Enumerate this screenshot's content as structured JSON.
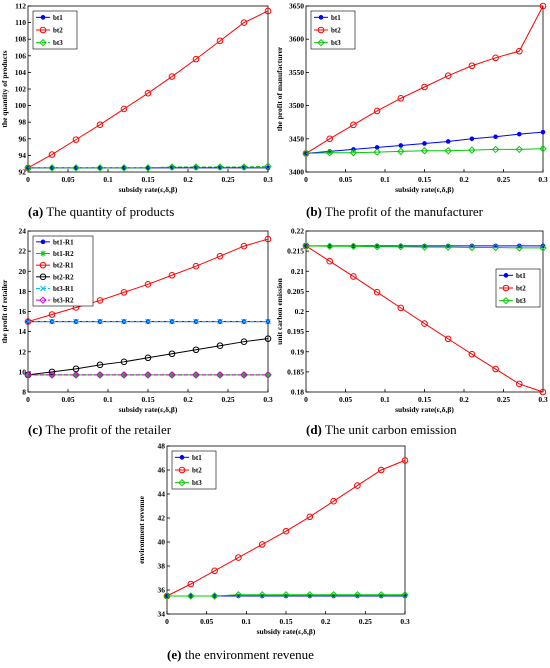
{
  "colors": {
    "bt1": "#0000ff",
    "bt2": "#ff0000",
    "bt3": "#00cc00",
    "bt2R2": "#000000",
    "bt3R1": "#00bfff",
    "bt3R2": "#cc00cc",
    "axis": "#000000"
  },
  "chart_data": [
    {
      "id": "a",
      "type": "line",
      "caption_letter": "(a)",
      "caption_text": "The quantity of products",
      "xlabel": "subsidy rate(ε,δ,β)",
      "ylabel": "the quantity of products",
      "xlim": [
        0,
        0.3
      ],
      "ylim": [
        92,
        112
      ],
      "xticks": [
        "0",
        "0.05",
        "0.1",
        "0.15",
        "0.2",
        "0.25",
        "0.3"
      ],
      "yticks": [
        "92",
        "94",
        "96",
        "98",
        "100",
        "102",
        "104",
        "106",
        "108",
        "110",
        "112"
      ],
      "legend_position": "top-left",
      "x": [
        0,
        0.03,
        0.06,
        0.09,
        0.12,
        0.15,
        0.18,
        0.21,
        0.24,
        0.27,
        0.3
      ],
      "series": [
        {
          "name": "bt1",
          "color": "#0000ff",
          "marker": "dot",
          "dash": "",
          "values": [
            92.5,
            92.5,
            92.5,
            92.5,
            92.5,
            92.5,
            92.5,
            92.5,
            92.5,
            92.5,
            92.5
          ]
        },
        {
          "name": "bt2",
          "color": "#ff0000",
          "marker": "circle",
          "dash": "",
          "values": [
            92.5,
            94.1,
            95.9,
            97.7,
            99.6,
            101.5,
            103.5,
            105.6,
            107.8,
            110.0,
            111.4
          ]
        },
        {
          "name": "bt3",
          "color": "#00cc00",
          "marker": "diamond",
          "dash": "4,2",
          "values": [
            92.5,
            92.5,
            92.5,
            92.5,
            92.5,
            92.5,
            92.6,
            92.6,
            92.6,
            92.6,
            92.7
          ]
        }
      ]
    },
    {
      "id": "b",
      "type": "line",
      "caption_letter": "(b)",
      "caption_text": "The profit of the manufacturer",
      "xlabel": "subsidy rate(ε,δ,β)",
      "ylabel": "the profit of manufacturer",
      "xlim": [
        0,
        0.3
      ],
      "ylim": [
        3400,
        3650
      ],
      "xticks": [
        "0",
        "0.05",
        "0.1",
        "0.15",
        "0.2",
        "0.25",
        "0.3"
      ],
      "yticks": [
        "3400",
        "3450",
        "3500",
        "3550",
        "3600",
        "3650"
      ],
      "legend_position": "top-left",
      "x": [
        0,
        0.03,
        0.06,
        0.09,
        0.12,
        0.15,
        0.18,
        0.21,
        0.24,
        0.27,
        0.3
      ],
      "series": [
        {
          "name": "bt1",
          "color": "#0000ff",
          "marker": "dot",
          "dash": "",
          "values": [
            3428,
            3431,
            3434,
            3437,
            3440,
            3443,
            3446,
            3450,
            3453,
            3457,
            3460
          ]
        },
        {
          "name": "bt2",
          "color": "#ff0000",
          "marker": "circle",
          "dash": "",
          "values": [
            3428,
            3450,
            3471,
            3492,
            3511,
            3528,
            3545,
            3560,
            3572,
            3582,
            3650
          ]
        },
        {
          "name": "bt3",
          "color": "#00cc00",
          "marker": "diamond",
          "dash": "",
          "values": [
            3428,
            3429,
            3429,
            3430,
            3431,
            3432,
            3432,
            3433,
            3434,
            3434,
            3435
          ]
        }
      ]
    },
    {
      "id": "c",
      "type": "line",
      "caption_letter": "(c)",
      "caption_text": "The profit of the retailer",
      "xlabel": "subsidy rate(ε,δ,β)",
      "ylabel": "the profit of retailer",
      "xlim": [
        0,
        0.3
      ],
      "ylim": [
        8,
        24
      ],
      "xticks": [
        "0",
        "0.05",
        "0.1",
        "0.15",
        "0.2",
        "0.25",
        "0.3"
      ],
      "yticks": [
        "8",
        "10",
        "12",
        "14",
        "16",
        "18",
        "20",
        "22",
        "24"
      ],
      "legend_position": "top-left",
      "x": [
        0,
        0.03,
        0.06,
        0.09,
        0.12,
        0.15,
        0.18,
        0.21,
        0.24,
        0.27,
        0.3
      ],
      "series": [
        {
          "name": "bt1-R1",
          "color": "#0000ff",
          "marker": "dot",
          "dash": "",
          "values": [
            15.0,
            15.0,
            15.0,
            15.0,
            15.0,
            15.0,
            15.0,
            15.0,
            15.0,
            15.0,
            15.0
          ]
        },
        {
          "name": "bt1-R2",
          "color": "#00cc00",
          "marker": "star",
          "dash": "",
          "values": [
            9.7,
            9.7,
            9.7,
            9.7,
            9.7,
            9.7,
            9.7,
            9.7,
            9.7,
            9.7,
            9.7
          ]
        },
        {
          "name": "bt2-R1",
          "color": "#ff0000",
          "marker": "circle",
          "dash": "",
          "values": [
            15.0,
            15.7,
            16.4,
            17.1,
            17.9,
            18.7,
            19.6,
            20.5,
            21.5,
            22.5,
            23.2
          ]
        },
        {
          "name": "bt2-R2",
          "color": "#000000",
          "marker": "circle",
          "dash": "",
          "values": [
            9.7,
            10.0,
            10.3,
            10.7,
            11.0,
            11.4,
            11.8,
            12.2,
            12.6,
            13.0,
            13.3
          ]
        },
        {
          "name": "bt3-R1",
          "color": "#00bfff",
          "marker": "x",
          "dash": "4,2",
          "values": [
            15.0,
            15.0,
            15.0,
            15.0,
            15.0,
            15.0,
            15.0,
            15.0,
            15.0,
            15.0,
            15.0
          ]
        },
        {
          "name": "bt3-R2",
          "color": "#cc00cc",
          "marker": "diamond",
          "dash": "4,2",
          "values": [
            9.7,
            9.7,
            9.7,
            9.7,
            9.7,
            9.7,
            9.7,
            9.7,
            9.7,
            9.7,
            9.7
          ]
        }
      ]
    },
    {
      "id": "d",
      "type": "line",
      "caption_letter": "(d)",
      "caption_text": "The unit carbon emission",
      "xlabel": "subsidy rate(ε,δ,β)",
      "ylabel": "unit carbon emission",
      "xlim": [
        0,
        0.3
      ],
      "ylim": [
        0.18,
        0.22
      ],
      "xticks": [
        "0",
        "0.05",
        "0.1",
        "0.15",
        "0.2",
        "0.25",
        "0.3"
      ],
      "yticks": [
        "0.18",
        "0.185",
        "0.19",
        "0.195",
        "0.2",
        "0.205",
        "0.21",
        "0.215",
        "0.22"
      ],
      "legend_position": "right",
      "x": [
        0,
        0.03,
        0.06,
        0.09,
        0.12,
        0.15,
        0.18,
        0.21,
        0.24,
        0.27,
        0.3
      ],
      "series": [
        {
          "name": "bt1",
          "color": "#0000ff",
          "marker": "dot",
          "dash": "",
          "values": [
            0.2163,
            0.2163,
            0.2163,
            0.2163,
            0.2163,
            0.2163,
            0.2163,
            0.2163,
            0.2163,
            0.2163,
            0.2163
          ]
        },
        {
          "name": "bt2",
          "color": "#ff0000",
          "marker": "circle",
          "dash": "",
          "values": [
            0.2163,
            0.2125,
            0.2087,
            0.2048,
            0.2009,
            0.197,
            0.1932,
            0.1894,
            0.1857,
            0.182,
            0.18
          ]
        },
        {
          "name": "bt3",
          "color": "#00cc00",
          "marker": "diamond",
          "dash": "",
          "values": [
            0.2163,
            0.2162,
            0.2162,
            0.2161,
            0.2161,
            0.216,
            0.216,
            0.2159,
            0.2159,
            0.2158,
            0.2158
          ]
        }
      ]
    },
    {
      "id": "e",
      "type": "line",
      "caption_letter": "(e)",
      "caption_text": "the environment revenue",
      "xlabel": "subsidy rate(ε,δ,β)",
      "ylabel": "environment revenue",
      "xlim": [
        0,
        0.3
      ],
      "ylim": [
        34,
        48
      ],
      "xticks": [
        "0",
        "0.05",
        "0.1",
        "0.15",
        "0.2",
        "0.25",
        "0.3"
      ],
      "yticks": [
        "34",
        "36",
        "38",
        "40",
        "42",
        "44",
        "46",
        "48"
      ],
      "legend_position": "top-left",
      "x": [
        0,
        0.03,
        0.06,
        0.09,
        0.12,
        0.15,
        0.18,
        0.21,
        0.24,
        0.27,
        0.3
      ],
      "series": [
        {
          "name": "bt1",
          "color": "#0000ff",
          "marker": "dot",
          "dash": "",
          "values": [
            35.5,
            35.5,
            35.5,
            35.5,
            35.5,
            35.5,
            35.5,
            35.5,
            35.5,
            35.5,
            35.5
          ]
        },
        {
          "name": "bt2",
          "color": "#ff0000",
          "marker": "circle",
          "dash": "",
          "values": [
            35.5,
            36.5,
            37.6,
            38.7,
            39.8,
            40.9,
            42.1,
            43.4,
            44.7,
            46.0,
            46.8
          ]
        },
        {
          "name": "bt3",
          "color": "#00cc00",
          "marker": "diamond",
          "dash": "",
          "values": [
            35.5,
            35.5,
            35.5,
            35.6,
            35.6,
            35.6,
            35.6,
            35.6,
            35.6,
            35.6,
            35.6
          ]
        }
      ]
    }
  ]
}
